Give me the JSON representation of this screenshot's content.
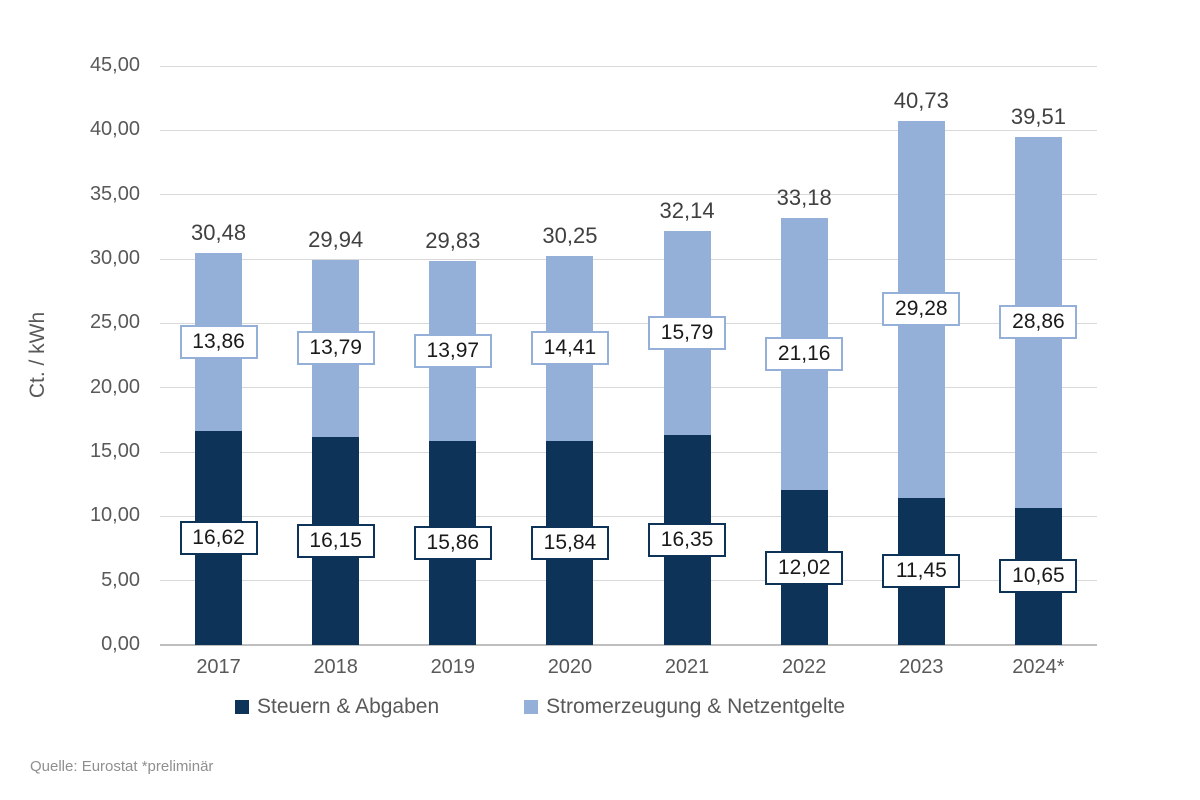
{
  "chart_data": {
    "type": "bar",
    "stacked": true,
    "title": "",
    "xlabel": "",
    "ylabel": "Ct. / kWh",
    "ylim": [
      0,
      45
    ],
    "ytick_step": 5,
    "yticks": [
      "0,00",
      "5,00",
      "10,00",
      "15,00",
      "20,00",
      "25,00",
      "30,00",
      "35,00",
      "40,00",
      "45,00"
    ],
    "grid": true,
    "legend_position": "bottom",
    "categories": [
      "2017",
      "2018",
      "2019",
      "2020",
      "2021",
      "2022",
      "2023",
      "2024*"
    ],
    "series": [
      {
        "name": "Steuern & Abgaben",
        "color": "#0d3359",
        "values": [
          16.62,
          16.15,
          15.86,
          15.84,
          16.35,
          12.02,
          11.45,
          10.65
        ],
        "labels": [
          "16,62",
          "16,15",
          "15,86",
          "15,84",
          "16,35",
          "12,02",
          "11,45",
          "10,65"
        ]
      },
      {
        "name": "Stromerzeugung & Netzentgelte",
        "color": "#94b0d8",
        "values": [
          13.86,
          13.79,
          13.97,
          14.41,
          15.79,
          21.16,
          29.28,
          28.86
        ],
        "labels": [
          "13,86",
          "13,79",
          "13,97",
          "14,41",
          "15,79",
          "21,16",
          "29,28",
          "28,86"
        ]
      }
    ],
    "totals": {
      "values": [
        30.48,
        29.94,
        29.83,
        30.25,
        32.14,
        33.18,
        40.73,
        39.51
      ],
      "labels": [
        "30,48",
        "29,94",
        "29,83",
        "30,25",
        "32,14",
        "33,18",
        "40,73",
        "39,51"
      ]
    }
  },
  "colors": {
    "grid": "#d9d9d9",
    "axis_line": "#bfbfbf",
    "axis_text": "#595959",
    "total_label_text": "#404040",
    "bar_label_text": "#1a1a1a",
    "source_text": "#8f8f8f"
  },
  "source_note": "Quelle: Eurostat  *preliminär"
}
